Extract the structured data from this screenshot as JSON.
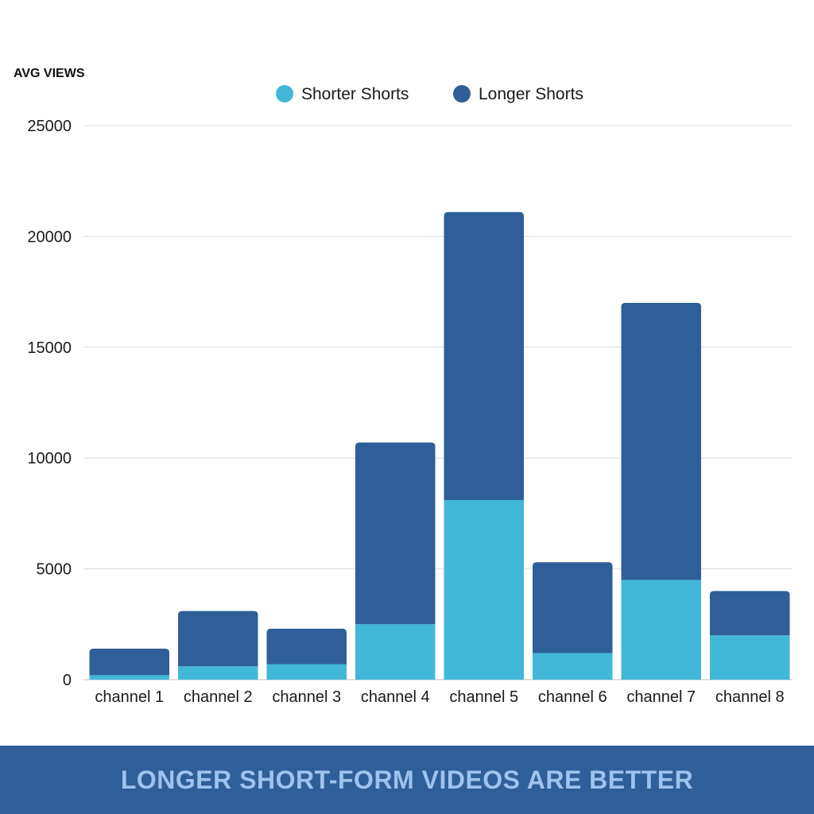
{
  "chart_data": {
    "type": "bar",
    "stacked": true,
    "ylabel": "AVG VIEWS",
    "ylim": [
      0,
      25000
    ],
    "yticks": [
      0,
      5000,
      10000,
      15000,
      20000,
      25000
    ],
    "grid": true,
    "legend_position": "top",
    "categories": [
      "channel 1",
      "channel 2",
      "channel 3",
      "channel 4",
      "channel 5",
      "channel 6",
      "channel 7",
      "channel 8"
    ],
    "series": [
      {
        "name": "Shorter Shorts",
        "color": "#41b8d8",
        "values": [
          200,
          600,
          700,
          2500,
          8100,
          1200,
          4500,
          2000
        ]
      },
      {
        "name": "Longer Shorts",
        "color": "#2e5f98",
        "values": [
          1200,
          2500,
          1600,
          8200,
          13000,
          4100,
          12500,
          2000
        ]
      }
    ]
  },
  "banner": {
    "text": "LONGER SHORT-FORM VIDEOS ARE BETTER"
  }
}
